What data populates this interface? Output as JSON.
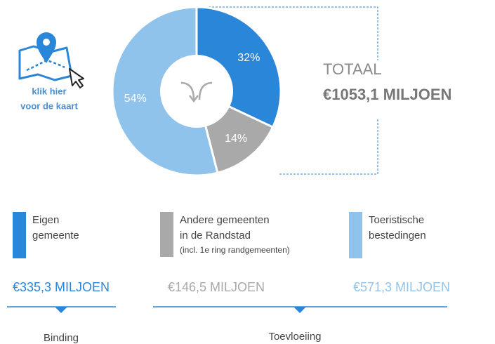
{
  "chart_data": {
    "type": "donut",
    "values": [
      32,
      14,
      54
    ],
    "value_labels": [
      "32%",
      "14%",
      "54%"
    ],
    "colors": [
      "#2a86d9",
      "#a9a9a9",
      "#90c3ec"
    ],
    "categories": [
      [
        "Eigen",
        "gemeente"
      ],
      [
        "Andere gemeenten",
        "in de Randstad"
      ],
      [
        "Toeristische",
        "bestedingen"
      ]
    ],
    "category_note": "(incl. 1e ring randgemeenten)",
    "amounts": [
      "€335,3 MILJOEN",
      "€146,5 MILJOEN",
      "€571,3 MILJOEN"
    ],
    "total_label": "TOTAAL",
    "total_value": "€1053,1 MILJOEN",
    "groups": [
      "Binding",
      "Toevloeiing"
    ]
  },
  "map_link": {
    "line1": "klik hier",
    "line2": "voor de kaart"
  }
}
